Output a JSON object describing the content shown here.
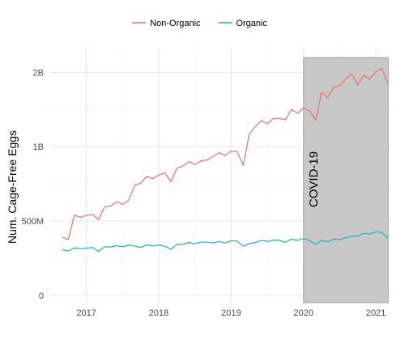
{
  "chart_data": {
    "type": "line",
    "xlabel": "",
    "ylabel": "Num. Cage-Free Eggs",
    "x_ticks": [
      {
        "value": 2017.0,
        "label": "2017"
      },
      {
        "value": 2018.0,
        "label": "2018"
      },
      {
        "value": 2019.0,
        "label": "2019"
      },
      {
        "value": 2020.0,
        "label": "2020"
      },
      {
        "value": 2021.0,
        "label": "2021"
      }
    ],
    "y_ticks": [
      {
        "value": 0,
        "label": "0"
      },
      {
        "value": 500000000,
        "label": "500M"
      },
      {
        "value": 1000000000,
        "label": "1B"
      },
      {
        "value": 1500000000,
        "label": "2B"
      }
    ],
    "xlim": [
      2016.5,
      2021.2
    ],
    "ylim": [
      -50000000,
      1660000000
    ],
    "grid": true,
    "legend_position": "top",
    "annotation": {
      "label": "COVID-19",
      "x_start": 2020.0,
      "x_end": 2021.17,
      "y_top": 1600000000,
      "fill": "#c8c8c8"
    },
    "series": [
      {
        "name": "Non-Organic",
        "color": "#e8716b",
        "points": [
          [
            2016.667,
            390000000
          ],
          [
            2016.75,
            375000000
          ],
          [
            2016.833,
            540000000
          ],
          [
            2016.917,
            525000000
          ],
          [
            2017.0,
            538000000
          ],
          [
            2017.083,
            545000000
          ],
          [
            2017.167,
            510000000
          ],
          [
            2017.25,
            595000000
          ],
          [
            2017.333,
            600000000
          ],
          [
            2017.417,
            630000000
          ],
          [
            2017.5,
            612000000
          ],
          [
            2017.583,
            640000000
          ],
          [
            2017.667,
            740000000
          ],
          [
            2017.75,
            755000000
          ],
          [
            2017.833,
            800000000
          ],
          [
            2017.917,
            785000000
          ],
          [
            2018.0,
            810000000
          ],
          [
            2018.083,
            825000000
          ],
          [
            2018.167,
            765000000
          ],
          [
            2018.25,
            855000000
          ],
          [
            2018.333,
            870000000
          ],
          [
            2018.417,
            900000000
          ],
          [
            2018.5,
            880000000
          ],
          [
            2018.583,
            905000000
          ],
          [
            2018.667,
            910000000
          ],
          [
            2018.75,
            935000000
          ],
          [
            2018.833,
            960000000
          ],
          [
            2018.917,
            940000000
          ],
          [
            2019.0,
            970000000
          ],
          [
            2019.083,
            965000000
          ],
          [
            2019.167,
            875000000
          ],
          [
            2019.25,
            1085000000
          ],
          [
            2019.333,
            1135000000
          ],
          [
            2019.417,
            1175000000
          ],
          [
            2019.5,
            1155000000
          ],
          [
            2019.583,
            1190000000
          ],
          [
            2019.667,
            1190000000
          ],
          [
            2019.75,
            1182000000
          ],
          [
            2019.833,
            1250000000
          ],
          [
            2019.917,
            1225000000
          ],
          [
            2020.0,
            1260000000
          ],
          [
            2020.083,
            1240000000
          ],
          [
            2020.167,
            1180000000
          ],
          [
            2020.25,
            1365000000
          ],
          [
            2020.333,
            1330000000
          ],
          [
            2020.417,
            1400000000
          ],
          [
            2020.5,
            1410000000
          ],
          [
            2020.583,
            1455000000
          ],
          [
            2020.667,
            1490000000
          ],
          [
            2020.75,
            1415000000
          ],
          [
            2020.833,
            1480000000
          ],
          [
            2020.917,
            1455000000
          ],
          [
            2021.0,
            1505000000
          ],
          [
            2021.083,
            1525000000
          ],
          [
            2021.167,
            1425000000
          ]
        ]
      },
      {
        "name": "Organic",
        "color": "#1fb3b3",
        "points": [
          [
            2016.667,
            308000000
          ],
          [
            2016.75,
            298000000
          ],
          [
            2016.833,
            320000000
          ],
          [
            2016.917,
            314000000
          ],
          [
            2017.0,
            318000000
          ],
          [
            2017.083,
            322000000
          ],
          [
            2017.167,
            296000000
          ],
          [
            2017.25,
            326000000
          ],
          [
            2017.333,
            325000000
          ],
          [
            2017.417,
            334000000
          ],
          [
            2017.5,
            327000000
          ],
          [
            2017.583,
            338000000
          ],
          [
            2017.667,
            332000000
          ],
          [
            2017.75,
            322000000
          ],
          [
            2017.833,
            340000000
          ],
          [
            2017.917,
            332000000
          ],
          [
            2018.0,
            338000000
          ],
          [
            2018.083,
            330000000
          ],
          [
            2018.167,
            310000000
          ],
          [
            2018.25,
            342000000
          ],
          [
            2018.333,
            345000000
          ],
          [
            2018.417,
            355000000
          ],
          [
            2018.5,
            348000000
          ],
          [
            2018.583,
            358000000
          ],
          [
            2018.667,
            358000000
          ],
          [
            2018.75,
            352000000
          ],
          [
            2018.833,
            362000000
          ],
          [
            2018.917,
            352000000
          ],
          [
            2019.0,
            367000000
          ],
          [
            2019.083,
            365000000
          ],
          [
            2019.167,
            330000000
          ],
          [
            2019.25,
            348000000
          ],
          [
            2019.333,
            355000000
          ],
          [
            2019.417,
            370000000
          ],
          [
            2019.5,
            362000000
          ],
          [
            2019.583,
            372000000
          ],
          [
            2019.667,
            370000000
          ],
          [
            2019.75,
            358000000
          ],
          [
            2019.833,
            378000000
          ],
          [
            2019.917,
            370000000
          ],
          [
            2020.0,
            382000000
          ],
          [
            2020.083,
            368000000
          ],
          [
            2020.167,
            342000000
          ],
          [
            2020.25,
            370000000
          ],
          [
            2020.333,
            360000000
          ],
          [
            2020.417,
            378000000
          ],
          [
            2020.5,
            374000000
          ],
          [
            2020.583,
            388000000
          ],
          [
            2020.667,
            395000000
          ],
          [
            2020.75,
            400000000
          ],
          [
            2020.833,
            418000000
          ],
          [
            2020.917,
            412000000
          ],
          [
            2021.0,
            428000000
          ],
          [
            2021.083,
            422000000
          ],
          [
            2021.167,
            385000000
          ]
        ]
      }
    ]
  }
}
